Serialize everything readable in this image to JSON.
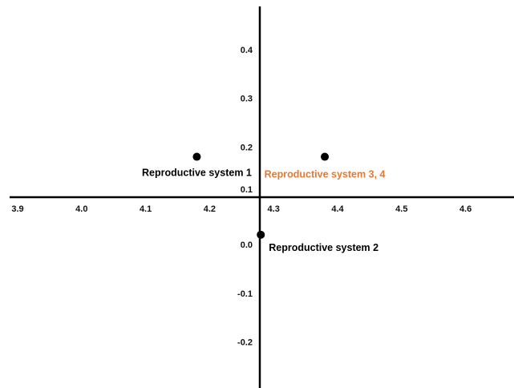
{
  "chart_data": {
    "type": "scatter",
    "x_ticks": [
      "3.9",
      "4.0",
      "4.1",
      "4.2",
      "4.3",
      "4.4",
      "4.5",
      "4.6"
    ],
    "y_ticks": [
      "0.4",
      "0.3",
      "0.2",
      "0.1",
      "0.0",
      "-0.1",
      "-0.2"
    ],
    "points": [
      {
        "x": 4.18,
        "y": 0.18,
        "label": "Reproductive system 1",
        "color": "#000000"
      },
      {
        "x": 4.38,
        "y": 0.18,
        "label": "Reproductive system 3, 4",
        "color": "#e8772e"
      },
      {
        "x": 4.28,
        "y": 0.02,
        "label": "Reproductive system 2",
        "color": "#000000"
      }
    ],
    "grid": false
  }
}
